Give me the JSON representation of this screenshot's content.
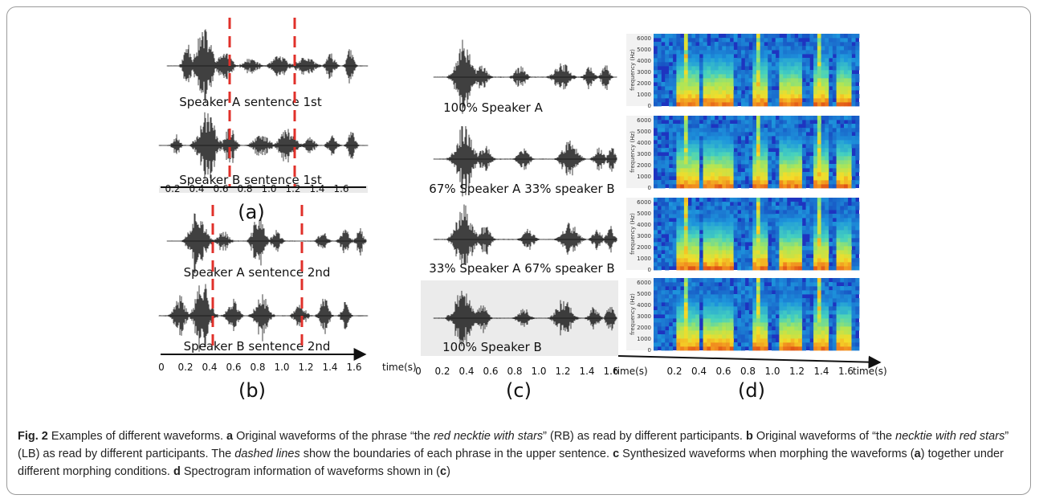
{
  "panel_a": {
    "rows": [
      "Speaker A sentence 1st",
      "Speaker B sentence 1st"
    ],
    "panel_label": "(a)",
    "axis_ticks": [
      "0.2",
      "0.4",
      "0.6",
      "0.8",
      "1.0",
      "1.2",
      "1.4",
      "1.6"
    ]
  },
  "panel_b": {
    "rows": [
      "Speaker A sentence 2nd",
      "Speaker B sentence 2nd"
    ],
    "panel_label": "(b)",
    "axis_ticks": [
      "0",
      "0.2",
      "0.4",
      "0.6",
      "0.8",
      "1.0",
      "1.2",
      "1.4",
      "1.6"
    ],
    "axis_unit": "time(s)"
  },
  "panel_c": {
    "rows": [
      "100% Speaker A",
      "67% Speaker A 33% speaker B",
      "33% Speaker A 67% speaker B",
      "100% Speaker B"
    ],
    "panel_label": "(c)",
    "axis_ticks": [
      "0",
      "0.2",
      "0.4",
      "0.6",
      "0.8",
      "1.0",
      "1.2",
      "1.4",
      "1.6"
    ],
    "axis_unit": "time(s)"
  },
  "panel_d": {
    "panel_label": "(d)",
    "axis_ticks": [
      "0.2",
      "0.4",
      "0.6",
      "0.8",
      "1.0",
      "1.2",
      "1.4",
      "1.6"
    ],
    "axis_unit": "time(s)",
    "freq_axis_label": "frequency (Hz)",
    "freq_ticks": [
      "0",
      "1000",
      "2000",
      "3000",
      "4000",
      "5000",
      "6000"
    ]
  },
  "colors": {
    "dashed_line": "#e0302a",
    "waveform": "#111111",
    "spec_low": "#1f3cc8",
    "spec_high": "#d42a10"
  },
  "caption": {
    "fig_label": "Fig. 2",
    "t1": " Examples of different waveforms. ",
    "a": "a",
    "t2": " Original waveforms of the phrase “the ",
    "i1": "red necktie with stars",
    "t3": "” (RB) as read by different participants. ",
    "b": "b",
    "t4": " Original waveforms of “the ",
    "i2": "necktie with red stars",
    "t5": "” (LB) as read by different participants. The ",
    "i3": "dashed lines",
    "t6": " show the boundaries of each phrase in the upper sentence. ",
    "c": "c",
    "t7": " Synthesized waveforms when morphing the waveforms (",
    "a2": "a",
    "t8": ") together under different morphing conditions. ",
    "d": "d",
    "t9": " Spectrogram information of waveforms shown in (",
    "c2": "c",
    "t10": ")"
  }
}
